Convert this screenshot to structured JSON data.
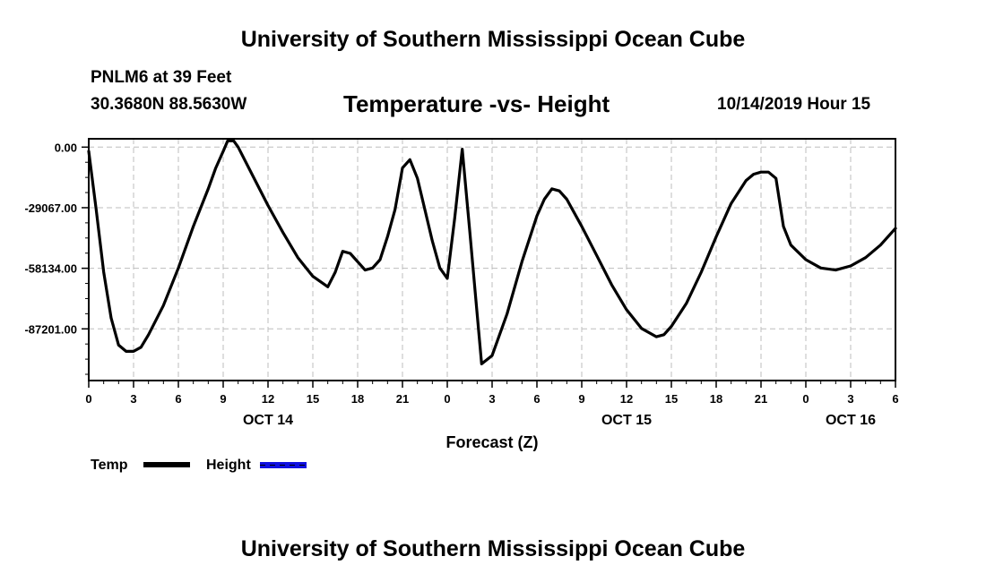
{
  "page": {
    "title_top": "University of Southern Mississippi Ocean Cube",
    "title_bottom": "University of Southern Mississippi Ocean Cube",
    "station": "PNLM6 at 39 Feet",
    "coords": "30.3680N 88.5630W",
    "datetime": "10/14/2019 Hour 15"
  },
  "chart_data": {
    "type": "line",
    "title": "Temperature -vs- Height",
    "xlabel": "Forecast (Z)",
    "ylabel": "",
    "x_range_hours": [
      0,
      54
    ],
    "ylim": [
      -112000,
      4000
    ],
    "y_ticks": [
      0,
      -29067,
      -58134,
      -87201
    ],
    "y_tick_labels": [
      "0.00",
      "-29067.00",
      "-58134.00",
      "-87201.00"
    ],
    "x_ticks_hours": [
      0,
      3,
      6,
      9,
      12,
      15,
      18,
      21,
      24,
      27,
      30,
      33,
      36,
      39,
      42,
      45,
      48,
      51,
      54
    ],
    "x_tick_labels": [
      "0",
      "3",
      "6",
      "9",
      "12",
      "15",
      "18",
      "21",
      "0",
      "3",
      "6",
      "9",
      "12",
      "15",
      "18",
      "21",
      "0",
      "3",
      "6"
    ],
    "day_labels": [
      {
        "hour": 12,
        "label": "OCT 14"
      },
      {
        "hour": 36,
        "label": "OCT 15"
      },
      {
        "hour": 51,
        "label": "OCT 16"
      }
    ],
    "grid": true,
    "legend": [
      {
        "label": "Temp",
        "color": "#000000",
        "style": "solid"
      },
      {
        "label": "Height",
        "color": "#1010e0",
        "style": "dashed"
      }
    ],
    "series": [
      {
        "name": "Temp",
        "color": "#000000",
        "points": [
          [
            0,
            -2000
          ],
          [
            0.5,
            -30000
          ],
          [
            1,
            -60000
          ],
          [
            1.5,
            -82000
          ],
          [
            2,
            -95000
          ],
          [
            2.5,
            -98000
          ],
          [
            3,
            -98000
          ],
          [
            3.5,
            -96000
          ],
          [
            4,
            -90000
          ],
          [
            5,
            -76000
          ],
          [
            6,
            -58000
          ],
          [
            7,
            -38000
          ],
          [
            8,
            -20000
          ],
          [
            8.5,
            -10000
          ],
          [
            9,
            -2000
          ],
          [
            9.3,
            3000
          ],
          [
            9.7,
            3000
          ],
          [
            10,
            0
          ],
          [
            11,
            -14000
          ],
          [
            12,
            -28000
          ],
          [
            13,
            -41000
          ],
          [
            14,
            -53000
          ],
          [
            15,
            -62000
          ],
          [
            16,
            -67000
          ],
          [
            16.5,
            -60000
          ],
          [
            17,
            -50000
          ],
          [
            17.5,
            -51000
          ],
          [
            18,
            -55000
          ],
          [
            18.5,
            -59000
          ],
          [
            19,
            -58000
          ],
          [
            19.5,
            -54000
          ],
          [
            20,
            -43000
          ],
          [
            20.5,
            -30000
          ],
          [
            21,
            -10000
          ],
          [
            21.5,
            -6000
          ],
          [
            22,
            -15000
          ],
          [
            22.5,
            -30000
          ],
          [
            23,
            -45000
          ],
          [
            23.5,
            -58000
          ],
          [
            24,
            -63000
          ],
          [
            24.5,
            -34000
          ],
          [
            25,
            -1000
          ],
          [
            25.5,
            -40000
          ],
          [
            26,
            -80000
          ],
          [
            26.3,
            -104000
          ],
          [
            27,
            -100000
          ],
          [
            28,
            -80000
          ],
          [
            29,
            -55000
          ],
          [
            30,
            -33000
          ],
          [
            30.5,
            -25000
          ],
          [
            31,
            -20000
          ],
          [
            31.5,
            -21000
          ],
          [
            32,
            -25000
          ],
          [
            33,
            -38000
          ],
          [
            34,
            -52000
          ],
          [
            35,
            -66000
          ],
          [
            36,
            -78000
          ],
          [
            37,
            -87000
          ],
          [
            38,
            -91000
          ],
          [
            38.5,
            -90000
          ],
          [
            39,
            -86000
          ],
          [
            40,
            -75000
          ],
          [
            41,
            -60000
          ],
          [
            42,
            -43000
          ],
          [
            43,
            -27000
          ],
          [
            44,
            -16000
          ],
          [
            44.5,
            -13000
          ],
          [
            45,
            -12000
          ],
          [
            45.5,
            -12000
          ],
          [
            46,
            -15000
          ],
          [
            46.5,
            -38000
          ],
          [
            47,
            -47000
          ],
          [
            48,
            -54000
          ],
          [
            49,
            -58000
          ],
          [
            50,
            -59000
          ],
          [
            51,
            -57000
          ],
          [
            52,
            -53000
          ],
          [
            53,
            -47000
          ],
          [
            54,
            -39000
          ]
        ]
      },
      {
        "name": "Height",
        "color": "#1010e0",
        "points": []
      }
    ]
  }
}
